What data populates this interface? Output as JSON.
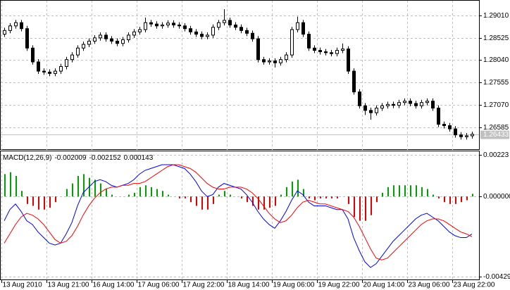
{
  "chart_data": [
    {
      "type": "candlestick",
      "open": [
        1.286,
        1.2868,
        1.2878,
        1.2885,
        1.2872,
        1.283,
        1.28,
        1.278,
        1.2778,
        1.2775,
        1.278,
        1.279,
        1.2805,
        1.2815,
        1.283,
        1.2838,
        1.2845,
        1.2852,
        1.2858,
        1.285,
        1.2845,
        1.284,
        1.2848,
        1.2858,
        1.2865,
        1.287,
        1.2885,
        1.2882,
        1.2878,
        1.288,
        1.2884,
        1.288,
        1.2878,
        1.2872,
        1.2865,
        1.286,
        1.2855,
        1.2858,
        1.2875,
        1.2885,
        1.289,
        1.288,
        1.2875,
        1.2868,
        1.2862,
        1.285,
        1.2805,
        1.28,
        1.2802,
        1.2798,
        1.2805,
        1.2815,
        1.287,
        1.2885,
        1.286,
        1.283,
        1.2825,
        1.2822,
        1.282,
        1.2818,
        1.2825,
        1.2828,
        1.278,
        1.2735,
        1.2705,
        1.2695,
        1.269,
        1.27,
        1.2705,
        1.2708,
        1.2706,
        1.2712,
        1.2715,
        1.271,
        1.2705,
        1.2712,
        1.2715,
        1.27,
        1.2665,
        1.2662,
        1.2655,
        1.2642,
        1.2638,
        1.264
      ],
      "high": [
        1.2874,
        1.2884,
        1.2891,
        1.2891,
        1.2878,
        1.2836,
        1.2806,
        1.2786,
        1.2784,
        1.2786,
        1.2796,
        1.2811,
        1.2821,
        1.2836,
        1.2844,
        1.2851,
        1.2858,
        1.2864,
        1.2864,
        1.2856,
        1.2851,
        1.2854,
        1.2864,
        1.2871,
        1.2876,
        1.2896,
        1.2891,
        1.2888,
        1.2886,
        1.289,
        1.289,
        1.2886,
        1.2884,
        1.2878,
        1.2871,
        1.2866,
        1.2864,
        1.2881,
        1.2891,
        1.2914,
        1.2896,
        1.2886,
        1.2881,
        1.2874,
        1.2868,
        1.2856,
        1.2811,
        1.2808,
        1.2808,
        1.2811,
        1.2821,
        1.2876,
        1.2898,
        1.2891,
        1.2866,
        1.2836,
        1.2831,
        1.2828,
        1.2826,
        1.2831,
        1.284,
        1.2834,
        1.2786,
        1.2741,
        1.2711,
        1.2701,
        1.2706,
        1.2711,
        1.2714,
        1.2714,
        1.2718,
        1.2721,
        1.2721,
        1.2716,
        1.2718,
        1.2721,
        1.2721,
        1.2706,
        1.2671,
        1.2668,
        1.2661,
        1.2648,
        1.2646,
        1.2649
      ],
      "low": [
        1.2854,
        1.2862,
        1.2872,
        1.2866,
        1.2824,
        1.2794,
        1.2774,
        1.2772,
        1.2769,
        1.2769,
        1.2774,
        1.2784,
        1.2799,
        1.2809,
        1.2824,
        1.2832,
        1.2839,
        1.2846,
        1.2844,
        1.2839,
        1.2834,
        1.2834,
        1.2842,
        1.2852,
        1.2859,
        1.2864,
        1.2876,
        1.2872,
        1.2872,
        1.2874,
        1.2874,
        1.2872,
        1.2866,
        1.2859,
        1.2854,
        1.2849,
        1.2849,
        1.2852,
        1.2869,
        1.2879,
        1.2874,
        1.2869,
        1.2862,
        1.2856,
        1.2844,
        1.2799,
        1.2794,
        1.2794,
        1.2788,
        1.2792,
        1.2799,
        1.2809,
        1.2864,
        1.2854,
        1.2824,
        1.2819,
        1.2816,
        1.2814,
        1.2812,
        1.2812,
        1.2819,
        1.2774,
        1.2729,
        1.2699,
        1.2685,
        1.2675,
        1.2684,
        1.2694,
        1.2699,
        1.27,
        1.27,
        1.2706,
        1.2704,
        1.2699,
        1.2699,
        1.2706,
        1.2694,
        1.2659,
        1.2656,
        1.2649,
        1.2636,
        1.2632,
        1.2632,
        1.2634
      ],
      "close": [
        1.2868,
        1.2878,
        1.2885,
        1.2872,
        1.283,
        1.28,
        1.278,
        1.2778,
        1.2775,
        1.278,
        1.279,
        1.2805,
        1.2815,
        1.283,
        1.2838,
        1.2845,
        1.2852,
        1.2858,
        1.285,
        1.2845,
        1.284,
        1.2848,
        1.2858,
        1.2865,
        1.287,
        1.2885,
        1.2882,
        1.2878,
        1.288,
        1.2884,
        1.288,
        1.2878,
        1.2872,
        1.2865,
        1.286,
        1.2855,
        1.2858,
        1.2875,
        1.2885,
        1.289,
        1.288,
        1.2875,
        1.2868,
        1.2862,
        1.285,
        1.2805,
        1.28,
        1.2802,
        1.2798,
        1.2805,
        1.2815,
        1.287,
        1.2885,
        1.286,
        1.283,
        1.2825,
        1.2822,
        1.282,
        1.2818,
        1.2825,
        1.2828,
        1.278,
        1.2735,
        1.2705,
        1.2695,
        1.269,
        1.27,
        1.2705,
        1.2708,
        1.2706,
        1.2712,
        1.2715,
        1.271,
        1.2705,
        1.2712,
        1.2715,
        1.27,
        1.2665,
        1.2662,
        1.2655,
        1.2642,
        1.2638,
        1.264,
        1.26433
      ],
      "up_color": "#ffffff",
      "down_color": "#000000",
      "ylim": [
        1.2614,
        1.2931
      ],
      "yticks": [
        1.26585,
        {
          "value": 1.2707,
          "label": "1.27070"
        },
        1.27555,
        {
          "value": 1.2804,
          "label": "1.28040"
        },
        1.28525,
        {
          "value": 1.2901,
          "label": "1.29010"
        }
      ],
      "grid": true
    },
    {
      "type": "line",
      "title": "MACD(12,26,9)",
      "series": [
        {
          "type": "line",
          "color": "#0000ff",
          "values": [
            -0.0013,
            -0.0007,
            -0.0004,
            -0.0008,
            -0.0013,
            -0.0015,
            -0.0019,
            -0.0022,
            -0.0025,
            -0.0026,
            -0.0025,
            -0.002,
            -0.0014,
            -0.0005,
            0.0002,
            0.0005,
            0.0008,
            0.0009,
            0.0008,
            0.0006,
            0.0005,
            0.0006,
            0.0007,
            0.0009,
            0.0012,
            0.0014,
            0.0015,
            0.0016,
            0.0017,
            0.0017,
            0.0017,
            0.0016,
            0.0015,
            0.0012,
            0.0008,
            0.0003,
            0,
            0.0001,
            0.0005,
            0.0007,
            0.0006,
            0.0005,
            0.0004,
            0.0001,
            -0.0003,
            -0.0008,
            -0.0012,
            -0.0015,
            -0.0017,
            -0.0013,
            -0.0008,
            -0.0002,
            0.0003,
            0.0001,
            -0.0003,
            -0.0005,
            -0.0005,
            -0.0005,
            -0.0006,
            -0.0007,
            -0.0007,
            -0.0012,
            -0.0022,
            -0.0029,
            -0.0035,
            -0.0038,
            -0.0036,
            -0.0032,
            -0.0028,
            -0.0024,
            -0.0021,
            -0.0018,
            -0.0015,
            -0.0012,
            -0.001,
            -0.0009,
            -0.0011,
            -0.0013,
            -0.0016,
            -0.0019,
            -0.0021,
            -0.0022,
            -0.0022,
            -0.002009
          ]
        },
        {
          "type": "line",
          "color": "#ff0000",
          "values": [
            -0.0025,
            -0.002,
            -0.0015,
            -0.0011,
            -0.0009,
            -0.001,
            -0.0012,
            -0.0015,
            -0.0019,
            -0.0023,
            -0.0025,
            -0.0024,
            -0.0021,
            -0.0016,
            -0.001,
            -0.0005,
            -0.0001,
            0.0002,
            0.0004,
            0.0005,
            0.0005,
            0.0006,
            0.0006,
            0.0007,
            0.0007,
            0.0008,
            0.001,
            0.0012,
            0.0014,
            0.0016,
            0.0017,
            0.0017,
            0.0016,
            0.0015,
            0.0013,
            0.001,
            0.0007,
            0.0005,
            0.0004,
            0.0004,
            0.0005,
            0.0005,
            0.0005,
            0.0004,
            0.0002,
            -0.0001,
            -0.0005,
            -0.0009,
            -0.0012,
            -0.0014,
            -0.0013,
            -0.001,
            -0.0006,
            -0.0003,
            -0.0002,
            -0.0003,
            -0.0004,
            -0.0004,
            -0.0005,
            -0.0006,
            -0.0007,
            -0.0008,
            -0.0011,
            -0.0016,
            -0.0022,
            -0.0028,
            -0.0033,
            -0.0034,
            -0.0033,
            -0.003,
            -0.0027,
            -0.0024,
            -0.0021,
            -0.0018,
            -0.0015,
            -0.0013,
            -0.0012,
            -0.0012,
            -0.0013,
            -0.0015,
            -0.0017,
            -0.0019,
            -0.002,
            -0.002152
          ]
        },
        {
          "type": "bar",
          "color": "#00a000",
          "negative_color": "#e00000",
          "values": [
            0.0012,
            0.0013,
            0.0011,
            0.0003,
            -0.0004,
            -0.0005,
            -0.0007,
            -0.0007,
            -0.0006,
            -0.0003,
            0,
            0.0004,
            0.0007,
            0.0011,
            0.0012,
            0.001,
            0.0009,
            0.0007,
            0.0004,
            0.0001,
            0,
            0,
            0.0001,
            0.0002,
            0.0005,
            0.0006,
            0.0005,
            0.0004,
            0.0003,
            0.0001,
            0,
            -0.0001,
            -0.0001,
            -0.0003,
            -0.0005,
            -0.0007,
            -0.0007,
            -0.0004,
            0.0001,
            0.0003,
            0.0001,
            0,
            -0.0001,
            -0.0003,
            -0.0005,
            -0.0007,
            -0.0007,
            -0.0006,
            -0.0005,
            0.0001,
            0.0005,
            0.0008,
            0.0009,
            0.0004,
            -0.0001,
            -0.0002,
            -0.0001,
            -0.0001,
            -0.0001,
            -0.0001,
            0,
            -0.0004,
            -0.0011,
            -0.0013,
            -0.0013,
            -0.001,
            -0.0003,
            0.0002,
            0.0005,
            0.0006,
            0.0006,
            0.0006,
            0.0006,
            0.0006,
            0.0005,
            0.0004,
            0.0001,
            -0.0001,
            -0.0003,
            -0.0004,
            -0.0004,
            -0.0003,
            -0.0002,
            0.000143
          ]
        }
      ],
      "ylim": [
        -0.00429,
        0.00223
      ],
      "yticks": [
        -0.00429,
        {
          "value": 0,
          "label": "0.000000"
        },
        0.00223
      ],
      "grid": true,
      "xticks": [
        {
          "value": 0,
          "label": "13 Aug 2010"
        },
        {
          "value": 8,
          "label": "13 Aug 21:00"
        },
        {
          "value": 16,
          "label": "16 Aug 14:00"
        },
        {
          "value": 24,
          "label": "17 Aug 06:00"
        },
        {
          "value": 32,
          "label": "17 Aug 22:00"
        },
        {
          "value": 40,
          "label": "18 Aug 14:00"
        },
        {
          "value": 48,
          "label": "19 Aug 06:00"
        },
        {
          "value": 56,
          "label": "19 Aug 22:00"
        },
        {
          "value": 64,
          "label": "20 Aug 14:00"
        },
        {
          "value": 72,
          "label": "23 Aug 06:00"
        },
        {
          "value": 80,
          "label": "23 Aug 22:00"
        }
      ]
    }
  ]
}
